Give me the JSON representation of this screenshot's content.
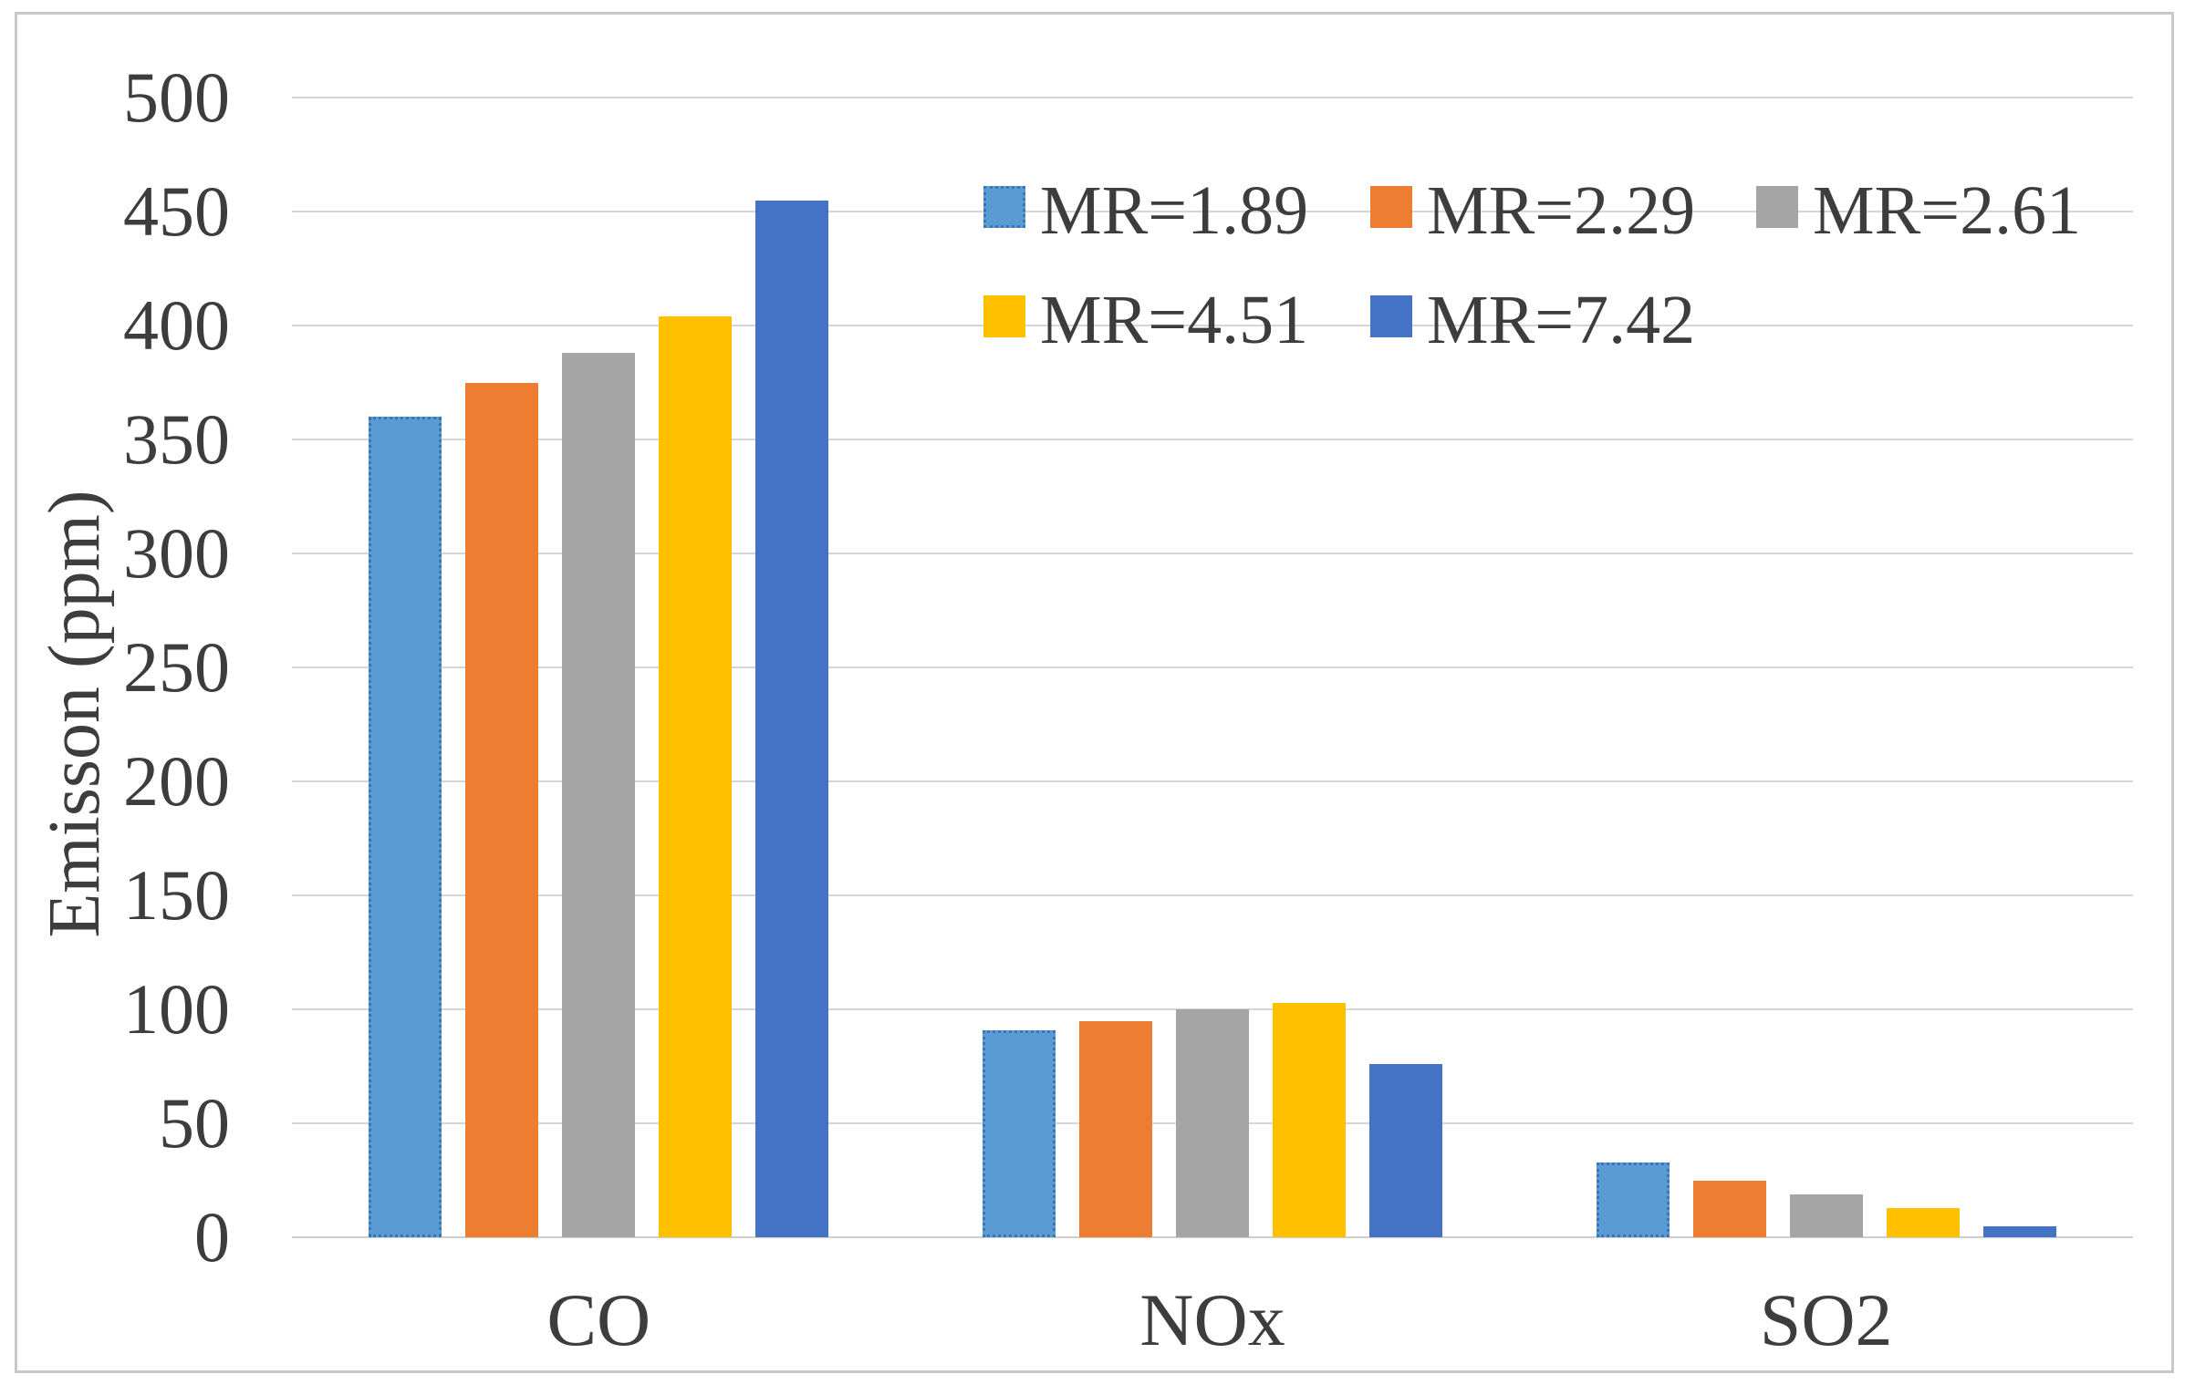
{
  "chart_data": {
    "type": "bar",
    "title": "",
    "xlabel": "",
    "ylabel": "Emisson (ppm)",
    "categories": [
      "CO",
      "NOx",
      "SO2"
    ],
    "series": [
      {
        "name": "MR=1.89",
        "color": "#5b9bd5",
        "fill_style": "dotted-edge",
        "values": [
          360,
          91,
          33
        ]
      },
      {
        "name": "MR=2.29",
        "color": "#ed7d31",
        "fill_style": "solid",
        "values": [
          375,
          95,
          25
        ]
      },
      {
        "name": "MR=2.61",
        "color": "#a5a5a5",
        "fill_style": "hatched",
        "values": [
          388,
          100,
          19
        ]
      },
      {
        "name": "MR=4.51",
        "color": "#ffc000",
        "fill_style": "solid",
        "values": [
          404,
          103,
          13
        ]
      },
      {
        "name": "MR=7.42",
        "color": "#4472c4",
        "fill_style": "solid",
        "values": [
          455,
          76,
          5
        ]
      }
    ],
    "ylim": [
      0,
      500
    ],
    "ytick_step": 50,
    "yticks": [
      0,
      50,
      100,
      150,
      200,
      250,
      300,
      350,
      400,
      450,
      500
    ],
    "grid": true,
    "legend_position": "top-right-inside",
    "legend_rows": [
      [
        "MR=1.89",
        "MR=2.29",
        "MR=2.61"
      ],
      [
        "MR=4.51",
        "MR=7.42"
      ]
    ],
    "colors": {
      "text": "#3d3d3d",
      "gridline": "#d6d6d6",
      "frame": "#c9c9c9",
      "background": "#ffffff"
    }
  }
}
